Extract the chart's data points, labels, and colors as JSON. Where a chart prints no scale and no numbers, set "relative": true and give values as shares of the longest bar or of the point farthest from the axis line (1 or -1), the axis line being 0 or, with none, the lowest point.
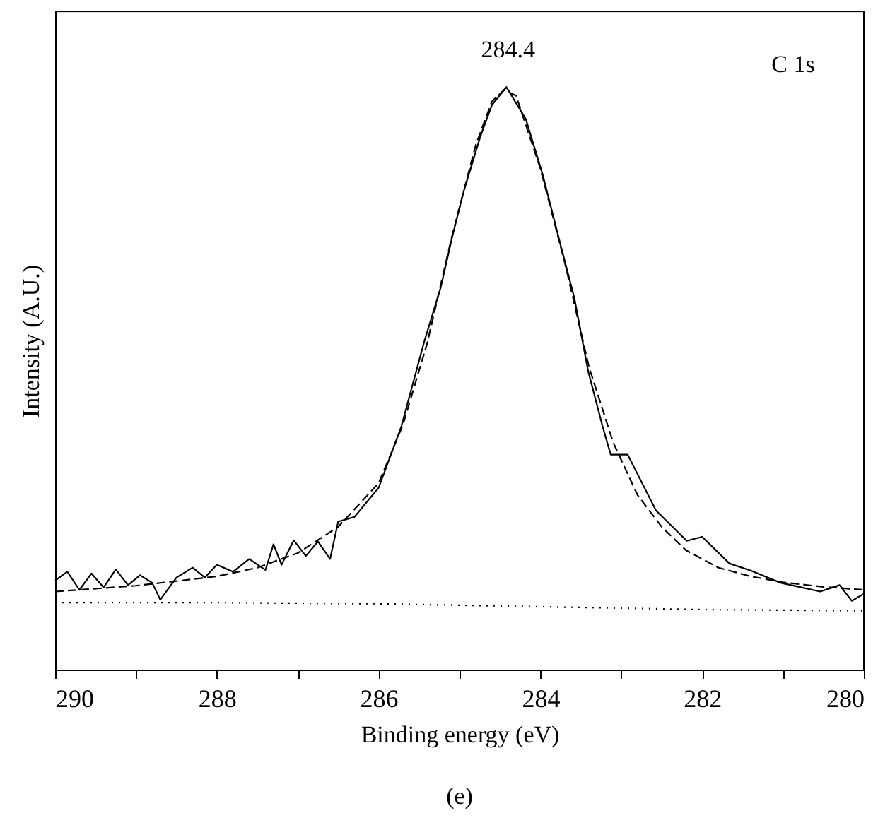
{
  "chart_data": {
    "type": "line",
    "relative": true,
    "xlabel": "Binding energy (eV)",
    "ylabel": "Intensity (A.U.)",
    "xlim": [
      290,
      280
    ],
    "xticks": [
      290,
      {
        "value": 289,
        "label": null
      },
      288,
      {
        "value": 287,
        "label": null
      },
      286,
      {
        "value": 285,
        "label": null
      },
      284,
      {
        "value": 283,
        "label": null
      },
      282,
      {
        "value": 281,
        "label": null
      },
      280
    ],
    "grid": false,
    "series": [
      {
        "color": "#000000",
        "line_style": "solid",
        "x": [
          290,
          289.85,
          289.7,
          289.55,
          289.4,
          289.25,
          289.1,
          288.95,
          288.8,
          288.7,
          288.5,
          288.3,
          288.15,
          288,
          287.8,
          287.6,
          287.4,
          287.3,
          287.2,
          287.05,
          286.9,
          286.75,
          286.6,
          286.5,
          286.3,
          286,
          285.72,
          285.44,
          285.23,
          285.09,
          284.95,
          284.74,
          284.6,
          284.42,
          284.18,
          283.97,
          283.76,
          283.58,
          283.41,
          283.23,
          283.13,
          282.92,
          282.57,
          282.19,
          282.0,
          281.66,
          281.4,
          281.03,
          280.8,
          280.54,
          280.3,
          280.15,
          280
        ],
        "values": [
          0.153,
          0.168,
          0.137,
          0.165,
          0.141,
          0.172,
          0.145,
          0.162,
          0.149,
          0.12,
          0.158,
          0.175,
          0.158,
          0.18,
          0.168,
          0.19,
          0.171,
          0.215,
          0.18,
          0.222,
          0.195,
          0.22,
          0.19,
          0.254,
          0.262,
          0.312,
          0.417,
          0.561,
          0.657,
          0.743,
          0.82,
          0.916,
          0.969,
          1.0,
          0.945,
          0.849,
          0.734,
          0.638,
          0.513,
          0.417,
          0.369,
          0.369,
          0.273,
          0.221,
          0.228,
          0.182,
          0.17,
          0.149,
          0.142,
          0.134,
          0.145,
          0.118,
          0.13
        ]
      },
      {
        "color": "#000000",
        "line_style": "dashed",
        "x": [
          290,
          289,
          288,
          287.5,
          287,
          286.5,
          286,
          285.7,
          285.4,
          285.1,
          284.8,
          284.6,
          284.45,
          284.3,
          284.0,
          283.7,
          283.4,
          283.1,
          282.8,
          282.5,
          282.2,
          281.8,
          281.4,
          281,
          280.5,
          280
        ],
        "values": [
          0.134,
          0.144,
          0.16,
          0.175,
          0.2,
          0.245,
          0.32,
          0.42,
          0.56,
          0.74,
          0.9,
          0.975,
          0.995,
          0.985,
          0.86,
          0.7,
          0.52,
          0.39,
          0.3,
          0.245,
          0.205,
          0.175,
          0.16,
          0.15,
          0.142,
          0.137
        ]
      },
      {
        "color": "#000000",
        "line_style": "dotted",
        "x": [
          290,
          288,
          286,
          284,
          282,
          280
        ],
        "values": [
          0.115,
          0.115,
          0.113,
          0.108,
          0.103,
          0.101
        ]
      }
    ],
    "annotations": [
      {
        "text": "284.4",
        "x": 284.4,
        "y": 1.0
      },
      "C 1s",
      "(e)"
    ]
  }
}
